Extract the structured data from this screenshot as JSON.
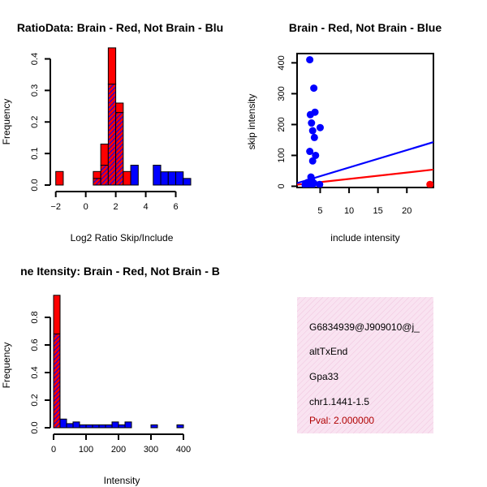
{
  "colors": {
    "red": "#ff0000",
    "blue": "#0000ff",
    "purple": "#9932a8",
    "panel_bg": "#f9dff0",
    "pval": "#b00000"
  },
  "chart_data": [
    {
      "type": "bar",
      "name": "ratio-histogram",
      "title": "RatioData: Brain - Red, Not Brain - Blu",
      "xlabel": "Log2 Ratio Skip/Include",
      "ylabel": "Frequency",
      "xlim": [
        -2.2,
        7.0
      ],
      "ylim": [
        0,
        0.44
      ],
      "xticks": [
        -2,
        0,
        2,
        4,
        6
      ],
      "yticks": [
        0.0,
        0.1,
        0.2,
        0.3,
        0.4
      ],
      "bin_width": 0.5,
      "series": [
        {
          "name": "Brain",
          "color": "red",
          "bin_starts": [
            -2.0,
            0.5,
            1.0,
            1.5,
            2.0,
            2.5
          ],
          "values": [
            0.043,
            0.043,
            0.13,
            0.435,
            0.26,
            0.043
          ]
        },
        {
          "name": "Not Brain",
          "color": "blue",
          "bin_starts": [
            0.5,
            1.0,
            1.5,
            2.0,
            3.0,
            4.5,
            5.0,
            5.5,
            6.0,
            6.5
          ],
          "values": [
            0.021,
            0.063,
            0.32,
            0.23,
            0.063,
            0.063,
            0.042,
            0.042,
            0.042,
            0.021
          ]
        }
      ]
    },
    {
      "type": "scatter",
      "name": "skip-include-scatter",
      "title": "Brain - Red, Not Brain - Blue",
      "xlabel": "include intensity",
      "ylabel": "skip intensity",
      "xlim": [
        1.0,
        24.6
      ],
      "ylim": [
        -4,
        430
      ],
      "xticks": [
        5,
        10,
        15,
        20
      ],
      "yticks": [
        0,
        100,
        200,
        300,
        400
      ],
      "series": [
        {
          "name": "Not Brain",
          "color": "blue",
          "points": [
            [
              3.2,
              410
            ],
            [
              3.9,
              318
            ],
            [
              4.1,
              240
            ],
            [
              3.3,
              232
            ],
            [
              3.5,
              205
            ],
            [
              5.0,
              190
            ],
            [
              3.7,
              180
            ],
            [
              4.0,
              158
            ],
            [
              3.2,
              113
            ],
            [
              4.2,
              100
            ],
            [
              3.7,
              82
            ],
            [
              3.4,
              30
            ],
            [
              3.5,
              22
            ],
            [
              2.8,
              12
            ],
            [
              3.0,
              8
            ],
            [
              3.9,
              10
            ],
            [
              4.9,
              6
            ],
            [
              3.6,
              4
            ],
            [
              2.4,
              5
            ]
          ]
        },
        {
          "name": "Brain",
          "color": "red",
          "points": [
            [
              24.0,
              6
            ]
          ]
        }
      ],
      "lines": [
        {
          "name": "Not Brain fit",
          "color": "blue",
          "from": [
            1.0,
            10
          ],
          "to": [
            24.6,
            143
          ]
        },
        {
          "name": "Brain fit",
          "color": "red",
          "from": [
            1.0,
            5
          ],
          "to": [
            24.6,
            54
          ]
        }
      ]
    },
    {
      "type": "bar",
      "name": "intensity-histogram",
      "title": "ne Itensity: Brain - Red, Not Brain - B",
      "xlabel": "Intensity",
      "ylabel": "Frequency",
      "xlim": [
        -5,
        425
      ],
      "ylim": [
        0,
        1.0
      ],
      "xticks": [
        0,
        100,
        200,
        300,
        400
      ],
      "yticks": [
        0.0,
        0.2,
        0.4,
        0.6,
        0.8
      ],
      "bin_width": 20,
      "series": [
        {
          "name": "Brain",
          "color": "red",
          "bin_starts": [
            0
          ],
          "values": [
            0.96
          ]
        },
        {
          "name": "Not Brain",
          "color": "blue",
          "bin_starts": [
            0,
            20,
            40,
            60,
            80,
            100,
            120,
            140,
            160,
            180,
            200,
            220,
            300,
            380
          ],
          "values": [
            0.68,
            0.063,
            0.03,
            0.042,
            0.021,
            0.021,
            0.021,
            0.021,
            0.021,
            0.042,
            0.021,
            0.042,
            0.021,
            0.021
          ]
        }
      ]
    }
  ],
  "info_panel": {
    "lines": [
      "G6834939@J909010@j_",
      "altTxEnd",
      "Gpa33",
      "chr1.1441-1.5"
    ],
    "pval": "Pval: 2.000000"
  }
}
